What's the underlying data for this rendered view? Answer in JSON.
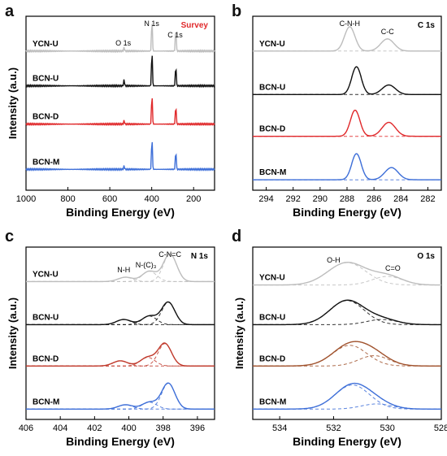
{
  "chart_data": [
    {
      "panel": "a",
      "type": "line",
      "region_label": "Survey",
      "region_color": "#e0292b",
      "xlabel": "Binding Energy (eV)",
      "ylabel": "Intensity (a.u.)",
      "xlim": [
        1000,
        100
      ],
      "xticks": [
        1000,
        800,
        600,
        400,
        200
      ],
      "series": [
        {
          "name": "YCN-U",
          "color": "#bdbdbd",
          "baseline": 0.8,
          "peaks": [
            [
              285,
              0.14,
              3
            ],
            [
              399,
              0.19,
              3
            ],
            [
              532,
              0.02,
              3
            ]
          ]
        },
        {
          "name": "BCN-U",
          "color": "#111111",
          "baseline": 0.6,
          "peaks": [
            [
              285,
              0.12,
              3
            ],
            [
              399,
              0.21,
              3
            ],
            [
              532,
              0.035,
              3
            ]
          ]
        },
        {
          "name": "BCN-D",
          "color": "#e0292b",
          "baseline": 0.38,
          "peaks": [
            [
              285,
              0.11,
              3
            ],
            [
              399,
              0.18,
              3
            ],
            [
              532,
              0.02,
              3
            ]
          ]
        },
        {
          "name": "BCN-M",
          "color": "#3e6fd8",
          "baseline": 0.12,
          "peaks": [
            [
              285,
              0.11,
              3
            ],
            [
              399,
              0.19,
              3
            ],
            [
              532,
              0.02,
              3
            ]
          ]
        }
      ],
      "annotations": [
        {
          "text": "N 1s",
          "x": 400
        },
        {
          "text": "C 1s",
          "x": 288
        },
        {
          "text": "O 1s",
          "x": 536
        }
      ]
    },
    {
      "panel": "b",
      "type": "line",
      "region_label": "C 1s",
      "xlabel": "Binding Energy (eV)",
      "ylabel": "",
      "xlim": [
        295,
        281
      ],
      "xticks": [
        294,
        292,
        290,
        288,
        286,
        284,
        282
      ],
      "series": [
        {
          "name": "YCN-U",
          "color": "#bdbdbd",
          "baseline": 0.8,
          "peaks": [
            [
              287.8,
              0.14,
              0.55
            ],
            [
              285.0,
              0.07,
              0.7
            ]
          ]
        },
        {
          "name": "BCN-U",
          "color": "#111111",
          "baseline": 0.55,
          "peaks": [
            [
              287.3,
              0.16,
              0.5
            ],
            [
              284.9,
              0.055,
              0.7
            ]
          ]
        },
        {
          "name": "BCN-D",
          "color": "#e0292b",
          "baseline": 0.31,
          "peaks": [
            [
              287.4,
              0.15,
              0.5
            ],
            [
              284.9,
              0.08,
              0.7
            ]
          ]
        },
        {
          "name": "BCN-M",
          "color": "#3e6fd8",
          "baseline": 0.06,
          "peaks": [
            [
              287.3,
              0.15,
              0.5
            ],
            [
              284.7,
              0.07,
              0.7
            ]
          ]
        }
      ],
      "annotations": [
        {
          "text": "C-N-H",
          "x": 287.8
        },
        {
          "text": "C-C",
          "x": 285.0
        }
      ]
    },
    {
      "panel": "c",
      "type": "line",
      "region_label": "N 1s",
      "xlabel": "Binding Energy (eV)",
      "ylabel": "Intensity (a.u.)",
      "xlim": [
        406,
        395
      ],
      "xticks": [
        406,
        404,
        402,
        400,
        398,
        396
      ],
      "series": [
        {
          "name": "YCN-U",
          "color": "#bdbdbd",
          "baseline": 0.8,
          "peaks": [
            [
              397.6,
              0.16,
              0.55
            ],
            [
              398.8,
              0.06,
              0.6
            ],
            [
              400.2,
              0.025,
              0.6
            ]
          ]
        },
        {
          "name": "BCN-U",
          "color": "#111111",
          "baseline": 0.55,
          "peaks": [
            [
              397.7,
              0.13,
              0.55
            ],
            [
              398.8,
              0.05,
              0.6
            ],
            [
              400.3,
              0.03,
              0.6
            ]
          ]
        },
        {
          "name": "BCN-D",
          "color": "#c0392b",
          "baseline": 0.31,
          "peaks": [
            [
              397.9,
              0.13,
              0.55
            ],
            [
              398.9,
              0.05,
              0.6
            ],
            [
              400.5,
              0.03,
              0.6
            ]
          ]
        },
        {
          "name": "BCN-M",
          "color": "#3e6fd8",
          "baseline": 0.06,
          "peaks": [
            [
              397.7,
              0.15,
              0.55
            ],
            [
              398.8,
              0.04,
              0.6
            ],
            [
              400.2,
              0.025,
              0.6
            ]
          ]
        }
      ],
      "annotations": [
        {
          "text": "C-N=C",
          "x": 397.6
        },
        {
          "text": "N-(C)₃",
          "x": 399.0
        },
        {
          "text": "N-H",
          "x": 400.3
        }
      ]
    },
    {
      "panel": "d",
      "type": "line",
      "region_label": "O 1s",
      "xlabel": "Binding Energy (eV)",
      "ylabel": "Intensity (a.u.)",
      "xlim": [
        535,
        528
      ],
      "xticks": [
        534,
        532,
        530,
        528
      ],
      "series": [
        {
          "name": "YCN-U",
          "color": "#bdbdbd",
          "baseline": 0.78,
          "peaks": [
            [
              531.5,
              0.13,
              1.0
            ],
            [
              530.0,
              0.05,
              0.8
            ]
          ]
        },
        {
          "name": "BCN-U",
          "color": "#111111",
          "baseline": 0.55,
          "peaks": [
            [
              531.5,
              0.14,
              0.9
            ],
            [
              530.2,
              0.03,
              0.8
            ]
          ]
        },
        {
          "name": "BCN-D",
          "color": "#a0522d",
          "baseline": 0.31,
          "peaks": [
            [
              531.4,
              0.12,
              0.9
            ],
            [
              530.5,
              0.06,
              0.8
            ]
          ]
        },
        {
          "name": "BCN-M",
          "color": "#3e6fd8",
          "baseline": 0.06,
          "peaks": [
            [
              531.3,
              0.14,
              0.9
            ],
            [
              530.4,
              0.03,
              0.8
            ]
          ]
        }
      ],
      "annotations": [
        {
          "text": "O-H",
          "x": 532.0
        },
        {
          "text": "C=O",
          "x": 529.8
        }
      ]
    }
  ]
}
